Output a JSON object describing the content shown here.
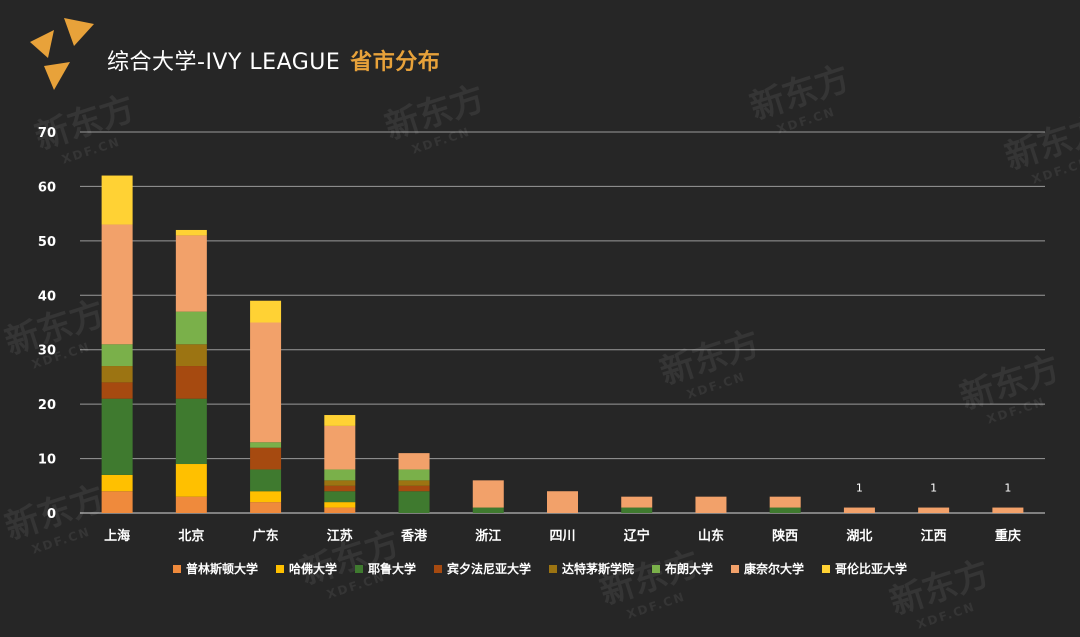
{
  "title": {
    "main": "综合大学-IVY LEAGUE",
    "accent": "省市分布"
  },
  "colors": {
    "accent": "#e8a23a",
    "普林斯顿大学": "#ef8a3c",
    "哈佛大学": "#ffc000",
    "耶鲁大学": "#3f7a2f",
    "宾夕法尼亚大学": "#a64a10",
    "达特茅斯学院": "#9c7412",
    "布朗大学": "#7ab04a",
    "康奈尔大学": "#f2a16a",
    "哥伦比亚大学": "#ffd234"
  },
  "watermark": {
    "brand": "新东方",
    "site": "XDF.CN"
  },
  "chart_data": {
    "type": "bar",
    "stacked": true,
    "categories": [
      "上海",
      "北京",
      "广东",
      "江苏",
      "香港",
      "浙江",
      "四川",
      "辽宁",
      "山东",
      "陕西",
      "湖北",
      "江西",
      "重庆"
    ],
    "series": [
      {
        "name": "普林斯顿大学",
        "values": [
          4,
          3,
          2,
          1,
          0,
          0,
          0,
          0,
          0,
          0,
          0,
          0,
          0
        ]
      },
      {
        "name": "哈佛大学",
        "values": [
          3,
          6,
          2,
          1,
          0,
          0,
          0,
          0,
          0,
          0,
          0,
          0,
          0
        ]
      },
      {
        "name": "耶鲁大学",
        "values": [
          14,
          12,
          4,
          2,
          4,
          1,
          0,
          1,
          0,
          1,
          0,
          0,
          0
        ]
      },
      {
        "name": "宾夕法尼亚大学",
        "values": [
          3,
          6,
          4,
          1,
          1,
          0,
          0,
          0,
          0,
          0,
          0,
          0,
          0
        ]
      },
      {
        "name": "达特茅斯学院",
        "values": [
          3,
          4,
          0,
          1,
          1,
          0,
          0,
          0,
          0,
          0,
          0,
          0,
          0
        ]
      },
      {
        "name": "布朗大学",
        "values": [
          4,
          6,
          1,
          2,
          2,
          0,
          0,
          0,
          0,
          0,
          0,
          0,
          0
        ]
      },
      {
        "name": "康奈尔大学",
        "values": [
          22,
          14,
          22,
          8,
          3,
          5,
          4,
          2,
          3,
          2,
          1,
          1,
          1
        ]
      },
      {
        "name": "哥伦比亚大学",
        "values": [
          9,
          1,
          4,
          2,
          0,
          0,
          0,
          0,
          0,
          0,
          0,
          0,
          0
        ]
      }
    ],
    "data_labels": [
      {
        "category": "湖北",
        "text": "1"
      },
      {
        "category": "江西",
        "text": "1"
      },
      {
        "category": "重庆",
        "text": "1"
      }
    ],
    "ylim": [
      0,
      70
    ],
    "yticks": [
      "0",
      "10",
      "20",
      "30",
      "40",
      "50",
      "60",
      "70"
    ],
    "grid": true,
    "legend": "bottom"
  }
}
